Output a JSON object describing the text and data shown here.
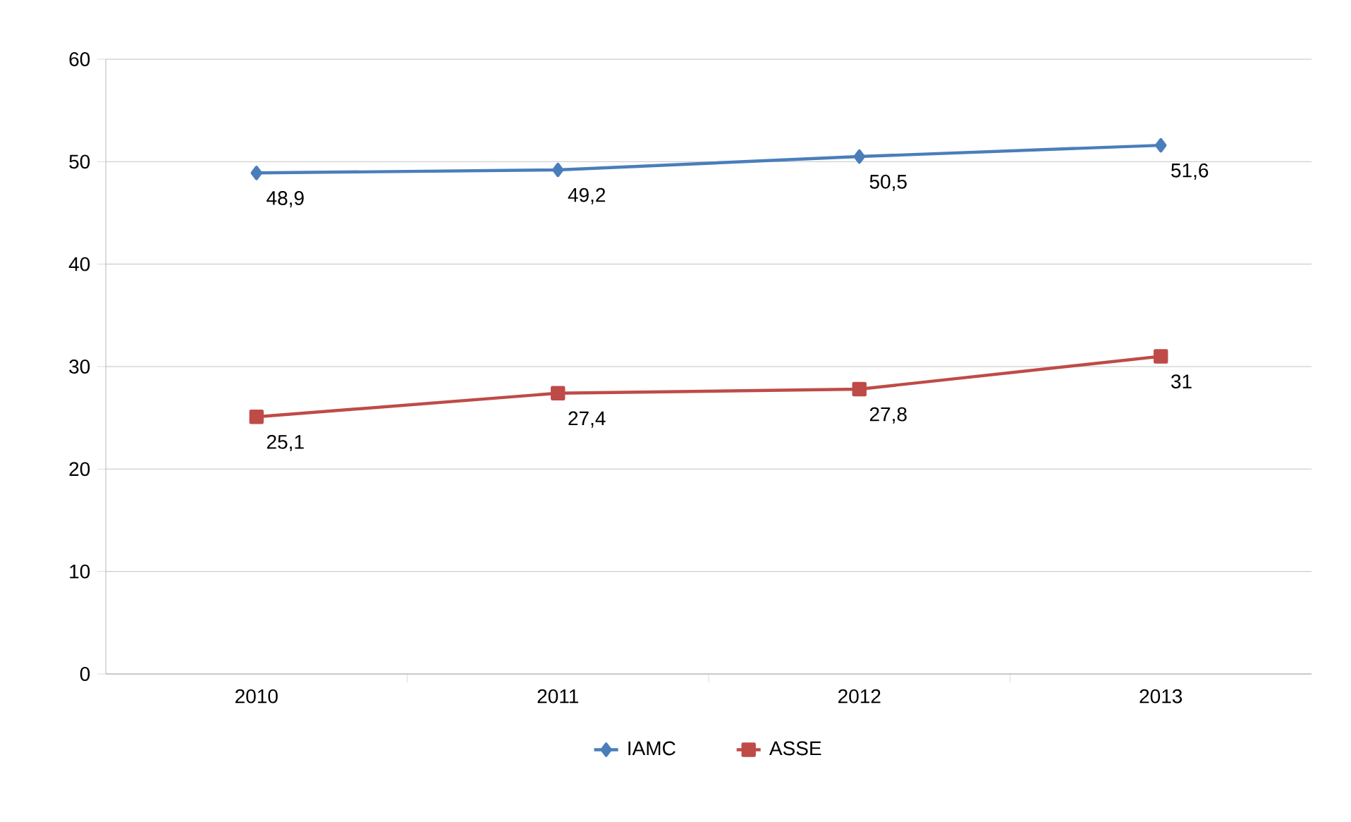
{
  "chart_data": {
    "type": "line",
    "categories": [
      "2010",
      "2011",
      "2012",
      "2013"
    ],
    "series": [
      {
        "name": "IAMC",
        "color": "#4a7ebb",
        "marker": "diamond",
        "values": [
          48.9,
          49.2,
          50.5,
          51.6
        ],
        "value_labels": [
          "48,9",
          "49,2",
          "50,5",
          "51,6"
        ]
      },
      {
        "name": "ASSE",
        "color": "#be4b48",
        "marker": "square",
        "values": [
          25.1,
          27.4,
          27.8,
          31
        ],
        "value_labels": [
          "25,1",
          "27,4",
          "27,8",
          "31"
        ]
      }
    ],
    "ylim": [
      0,
      60
    ],
    "yticks": [
      0,
      10,
      20,
      30,
      40,
      50,
      60
    ],
    "grid": "y",
    "legend": "bottom"
  }
}
